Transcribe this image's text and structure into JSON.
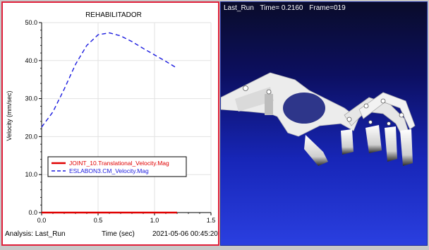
{
  "chart_panel": {
    "footer": {
      "analysis": "Analysis:  Last_Run",
      "xaxis_caption": "Time (sec)",
      "timestamp": "2021-05-06 00:45:20"
    }
  },
  "animation_panel": {
    "run_name": "Last_Run",
    "time_text": "Time= 0.2160",
    "frame_text": "Frame=019"
  },
  "colors": {
    "series_red": "#e00000",
    "series_blue": "#1a1adf",
    "left_border": "#e0203a"
  },
  "chart_data": {
    "type": "line",
    "title": "REHABILITADOR",
    "xlabel": "",
    "ylabel": "Velocity (mm/sec)",
    "xlim": [
      0.0,
      1.5
    ],
    "ylim": [
      0.0,
      50.0
    ],
    "xticks": [
      "0.0",
      "0.5",
      "1.0",
      "1.5"
    ],
    "yticks": [
      "0.0",
      "10.0",
      "20.0",
      "30.0",
      "40.0",
      "50.0"
    ],
    "legend_position": "lower-left",
    "series": [
      {
        "name": "JOINT_10.Translational_Velocity.Mag",
        "style": "solid",
        "color": "#e00000",
        "x": [
          0.0,
          0.2,
          0.4,
          0.6,
          0.8,
          1.0,
          1.2
        ],
        "y": [
          0.0,
          0.0,
          0.0,
          0.0,
          0.0,
          0.0,
          0.0
        ]
      },
      {
        "name": "ESLABON3.CM_Velocity.Mag",
        "style": "dashed",
        "color": "#1a1adf",
        "x": [
          0.0,
          0.1,
          0.2,
          0.3,
          0.4,
          0.5,
          0.6,
          0.7,
          0.8,
          0.9,
          1.0,
          1.1,
          1.2
        ],
        "y": [
          22.5,
          26.5,
          32.5,
          39.0,
          44.0,
          46.8,
          47.3,
          46.5,
          45.0,
          43.2,
          41.5,
          39.8,
          38.0
        ]
      }
    ]
  }
}
